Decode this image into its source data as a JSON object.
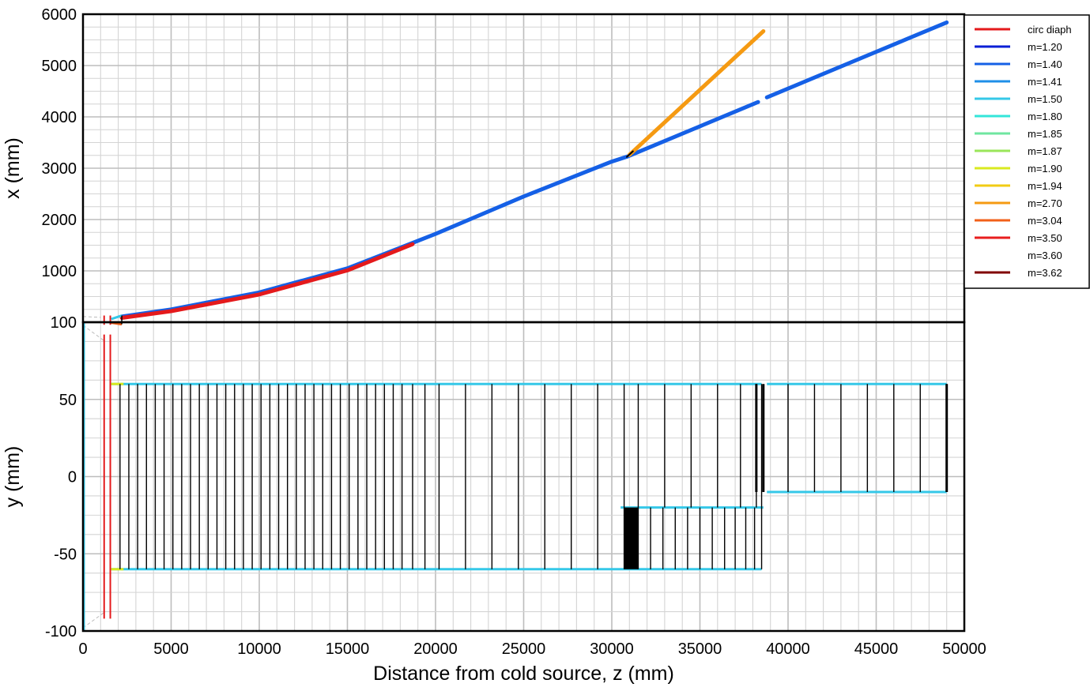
{
  "chart_data": [
    {
      "type": "line",
      "ylabel": "x (mm)",
      "xlim": [
        0,
        50000
      ],
      "ylim": [
        0,
        6000
      ],
      "grid": true,
      "x_ticks": [
        0,
        5000,
        10000,
        15000,
        20000,
        25000,
        30000,
        35000,
        40000,
        45000,
        50000
      ],
      "y_ticks": [
        1000,
        2000,
        3000,
        4000,
        5000,
        6000
      ],
      "y_tick_labels": [
        "1000",
        "2000",
        "3000",
        "4000",
        "5000",
        "6000"
      ],
      "legend": {
        "position": "top-right",
        "entries": [
          {
            "label": "circ diaph",
            "color": "#e41a1c"
          },
          {
            "label": "m=1.20",
            "color": "#0a1fd6"
          },
          {
            "label": "m=1.40",
            "color": "#1560e6"
          },
          {
            "label": "m=1.41",
            "color": "#1f8fe8"
          },
          {
            "label": "m=1.50",
            "color": "#35c8e8"
          },
          {
            "label": "m=1.80",
            "color": "#33e6d9"
          },
          {
            "label": "m=1.85",
            "color": "#6fe6a0"
          },
          {
            "label": "m=1.87",
            "color": "#9ae65a"
          },
          {
            "label": "m=1.90",
            "color": "#d9ea1f"
          },
          {
            "label": "m=1.94",
            "color": "#f2cc14"
          },
          {
            "label": "m=2.70",
            "color": "#f59a12"
          },
          {
            "label": "m=3.04",
            "color": "#f2601a"
          },
          {
            "label": "m=3.50",
            "color": "#e81e1e"
          },
          {
            "label": "m=3.60",
            "color": ""
          },
          {
            "label": "m=3.62",
            "color": "#800000"
          }
        ]
      },
      "series": [
        {
          "color": "#1560e6",
          "x": [
            2200,
            5000,
            10000,
            15000,
            20000,
            25000,
            30000,
            30900
          ],
          "y": [
            110,
            250,
            580,
            1050,
            1720,
            2450,
            3130,
            3230
          ]
        },
        {
          "color": "#e41a1c",
          "x": [
            2200,
            5000,
            10000,
            15000,
            18700
          ],
          "y": [
            85,
            215,
            540,
            1010,
            1520
          ]
        },
        {
          "color": "#1560e6",
          "x": [
            30900,
            38300
          ],
          "y": [
            3230,
            4290
          ]
        },
        {
          "color": "#1560e6",
          "x": [
            38800,
            49000
          ],
          "y": [
            4380,
            5840
          ]
        },
        {
          "color": "#f59a12",
          "x": [
            31000,
            38600
          ],
          "y": [
            3260,
            5670
          ]
        },
        {
          "color": "#000000",
          "x": [
            30850,
            31200
          ],
          "y": [
            3220,
            3330
          ]
        }
      ]
    },
    {
      "type": "line",
      "xlabel": "Distance from cold source, z (mm)",
      "ylabel": "y (mm)",
      "xlim": [
        0,
        50000
      ],
      "ylim": [
        -100,
        100
      ],
      "grid": true,
      "x_ticks": [
        0,
        5000,
        10000,
        15000,
        20000,
        25000,
        30000,
        35000,
        40000,
        45000,
        50000
      ],
      "x_tick_labels": [
        "0",
        "5000",
        "10000",
        "15000",
        "20000",
        "25000",
        "30000",
        "35000",
        "40000",
        "45000",
        "50000"
      ],
      "y_ticks": [
        -100,
        -50,
        0,
        50,
        100
      ],
      "y_tick_labels": [
        "-100",
        "-50",
        "0",
        "50",
        "100"
      ],
      "guides": [
        {
          "color": "#35c8e8",
          "segments": [
            [
              1600,
              60,
              38500,
              60
            ],
            [
              1600,
              -60,
              38500,
              -60
            ]
          ]
        },
        {
          "color": "#35c8e8",
          "segments": [
            [
              30500,
              -20,
              38600,
              -20
            ]
          ]
        },
        {
          "color": "#35c8e8",
          "segments": [
            [
              38800,
              60,
              49000,
              60
            ],
            [
              38800,
              -10,
              49000,
              -10
            ]
          ]
        }
      ],
      "diaphragms_z": [
        1200,
        1550
      ],
      "diaphragm_y": [
        -92,
        92
      ],
      "section_walls": {
        "main_z": [
          2100,
          2600,
          3100,
          3600,
          4100,
          4600,
          5100,
          5600,
          6100,
          6600,
          7100,
          7600,
          8100,
          8600,
          9100,
          9600,
          10100,
          10600,
          11100,
          11600,
          12100,
          12600,
          13100,
          13600,
          14100,
          14600,
          15100,
          15600,
          16100,
          16600,
          17100,
          17600,
          18100,
          18700,
          19400,
          20200,
          21700,
          23200,
          24700,
          26200,
          27700,
          29200,
          30700
        ],
        "main_y": [
          -60,
          60
        ],
        "lower_z": [
          31500,
          32200,
          32900,
          33600,
          34300,
          35000,
          35700,
          36400,
          37000,
          37600,
          38100,
          38500
        ],
        "lower_y": [
          -60,
          -20
        ],
        "upper_z": [
          31500,
          33000,
          34500,
          36000,
          37300,
          38200,
          38500
        ],
        "upper_y": [
          -20,
          60
        ],
        "block_z": [
          30700,
          31500
        ],
        "block_y": [
          -60,
          -20
        ],
        "right_z": [
          40000,
          41500,
          43000,
          44500,
          46000,
          47500,
          49000
        ],
        "right_y": [
          -10,
          60
        ]
      }
    }
  ]
}
